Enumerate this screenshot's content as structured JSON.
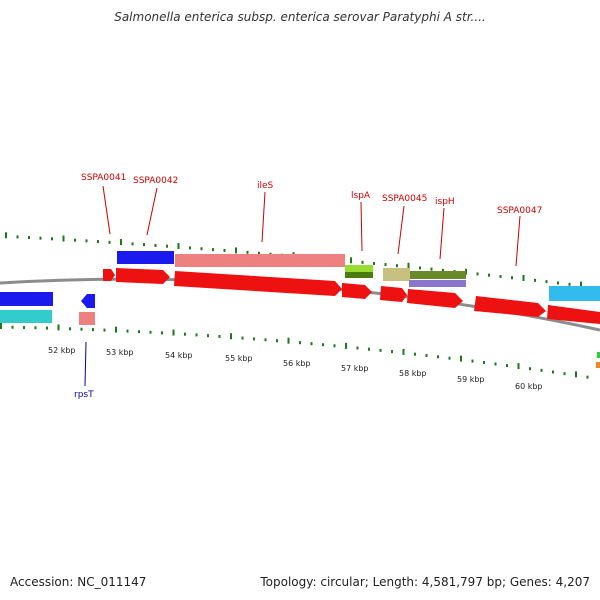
{
  "title": "Salmonella enterica subsp. enterica serovar Paratyphi A str....",
  "footer": {
    "accession": "Accession: NC_011147",
    "summary": "Topology: circular; Length: 4,581,797 bp; Genes: 4,207"
  },
  "colors": {
    "backbone": "#8c8c8c",
    "tick": "#1a7a1a",
    "cds_forward": "#ee1111",
    "label_red": "#cc0000",
    "label_blue": "#0000aa",
    "blue": "#1a1aee",
    "pink": "#ee8080",
    "lime": "#99dd33",
    "tan": "#c8c080",
    "olive": "#6a8a2a",
    "purple": "#8877cc",
    "cyan": "#33bbee",
    "teal": "#33cccc"
  },
  "gene_labels": [
    {
      "id": "SSPA0041",
      "text": "SSPA0041"
    },
    {
      "id": "SSPA0042",
      "text": "SSPA0042"
    },
    {
      "id": "ileS",
      "text": "ileS"
    },
    {
      "id": "lspA",
      "text": "lspA"
    },
    {
      "id": "SSPA0045",
      "text": "SSPA0045"
    },
    {
      "id": "ispH",
      "text": "ispH"
    },
    {
      "id": "SSPA0047",
      "text": "SSPA0047"
    },
    {
      "id": "rpsT",
      "text": "rpsT"
    }
  ],
  "scale_labels": [
    "52 kbp",
    "53 kbp",
    "54 kbp",
    "55 kbp",
    "56 kbp",
    "57 kbp",
    "58 kbp",
    "59 kbp",
    "60 kbp"
  ]
}
